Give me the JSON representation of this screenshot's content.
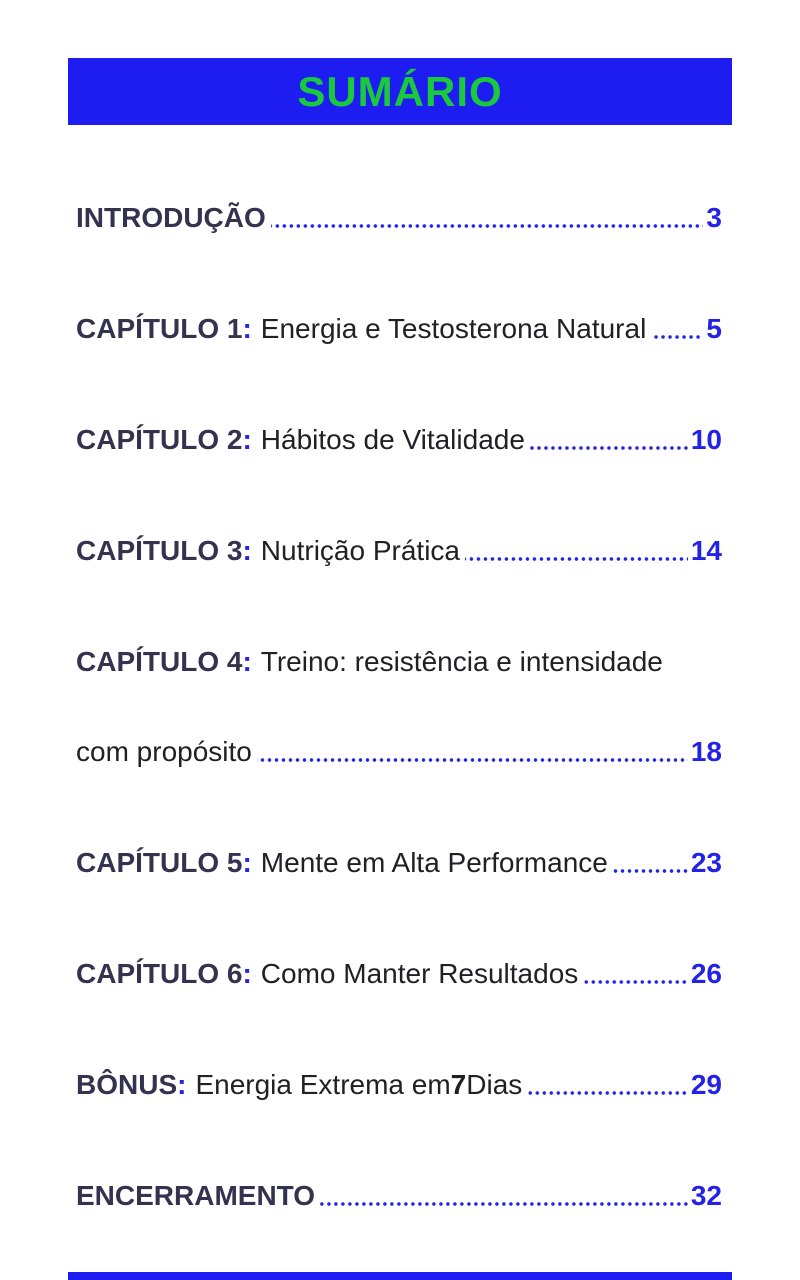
{
  "header": {
    "title": "SUMÁRIO",
    "bg_color": "#1d1df2",
    "text_color": "#1bc93c"
  },
  "colors": {
    "label_navy": "#333350",
    "title_text": "#202027",
    "accent_blue": "#2323e5"
  },
  "toc": {
    "entries": [
      {
        "label": "INTRODUÇÃO",
        "page": "3"
      },
      {
        "label": "CAPÍTULO 1",
        "colon": ":",
        "title": "Energia e Testosterona Natural",
        "page": "5"
      },
      {
        "label": "CAPÍTULO 2",
        "colon": ":",
        "title": "Hábitos de Vitalidade",
        "page": "10"
      },
      {
        "label": "CAPÍTULO 3",
        "colon": ":",
        "title": "Nutrição Prática",
        "page": "14"
      },
      {
        "label": "CAPÍTULO 4",
        "colon": ":",
        "title": "Treino: resistência e intensidade",
        "title_line2": "com propósito",
        "page": "18"
      },
      {
        "label": "CAPÍTULO 5",
        "colon": ":",
        "title": "Mente em Alta Performance",
        "page": "23"
      },
      {
        "label": "CAPÍTULO 6",
        "colon": ":",
        "title": "Como Manter Resultados",
        "page": "26"
      },
      {
        "label": "BÔNUS",
        "colon": ":",
        "title_pre": "Energia Extrema em ",
        "title_bold": "7",
        "title_post": " Dias",
        "page": "29"
      },
      {
        "label": "ENCERRAMENTO",
        "page": "32"
      }
    ]
  }
}
